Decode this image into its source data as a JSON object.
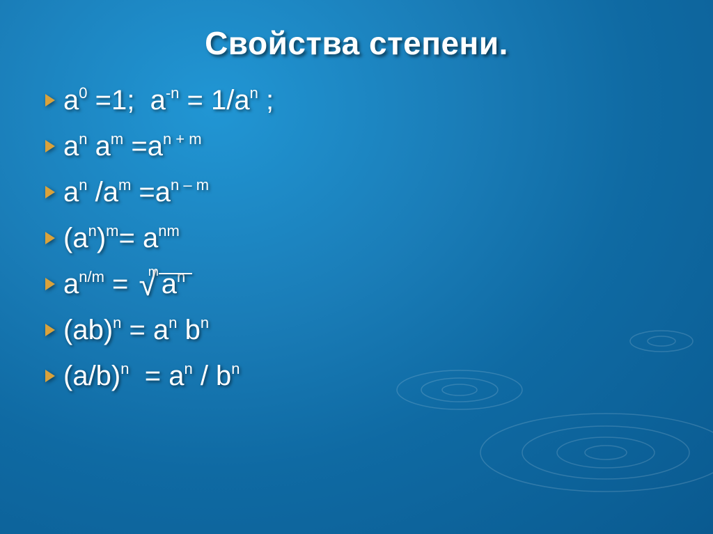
{
  "title": "Свойства степени.",
  "bullet_color": "#d9a23b",
  "text_color": "#ffffff",
  "background_gradient": [
    "#2196d4",
    "#1a7db8",
    "#0f6aa3",
    "#0a5a90"
  ],
  "title_fontsize": 46,
  "formula_fontsize": 40,
  "superscript_fontsize": 22,
  "formulas": [
    {
      "segments": [
        {
          "base": "а",
          "sup": "0"
        },
        {
          "text": " =1;  "
        },
        {
          "base": "а",
          "sup": "-n"
        },
        {
          "text": " = 1/"
        },
        {
          "base": "а",
          "sup": "n"
        },
        {
          "text": " ;"
        }
      ]
    },
    {
      "segments": [
        {
          "base": "а",
          "sup": "n"
        },
        {
          "text": " "
        },
        {
          "base": "а",
          "sup": "m"
        },
        {
          "text": " ="
        },
        {
          "base": "а",
          "sup": "n + m"
        }
      ]
    },
    {
      "segments": [
        {
          "base": "а",
          "sup": "n"
        },
        {
          "text": " /"
        },
        {
          "base": "а",
          "sup": "m"
        },
        {
          "text": " ="
        },
        {
          "base": "а",
          "sup": "n – m"
        }
      ]
    },
    {
      "segments": [
        {
          "text": "("
        },
        {
          "base": "а",
          "sup": "n"
        },
        {
          "text": ")"
        },
        {
          "base": "",
          "sup": "m"
        },
        {
          "text": "= "
        },
        {
          "base": "а",
          "sup": "nm"
        }
      ]
    },
    {
      "segments": [
        {
          "base": "а",
          "sup": "n/m"
        },
        {
          "text": " = "
        },
        {
          "sqrt": true,
          "index": "m",
          "inner_base": "а",
          "inner_sup": "n"
        }
      ]
    },
    {
      "segments": [
        {
          "text": "(аb)"
        },
        {
          "base": "",
          "sup": "n"
        },
        {
          "text": " = "
        },
        {
          "base": "а",
          "sup": "n"
        },
        {
          "text": " "
        },
        {
          "base": "b",
          "sup": "n"
        }
      ]
    },
    {
      "segments": [
        {
          "text": "(а/b)"
        },
        {
          "base": "",
          "sup": "n"
        },
        {
          "text": "  = "
        },
        {
          "base": "а",
          "sup": "n"
        },
        {
          "text": " / "
        },
        {
          "base": "b",
          "sup": "n"
        }
      ]
    }
  ]
}
